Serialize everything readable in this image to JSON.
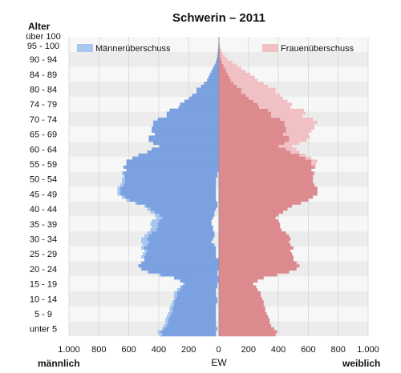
{
  "chart_data": {
    "type": "bar",
    "orientation": "horizontal-population-pyramid",
    "title": "Schwerin – 2011",
    "ylabel": "Alter",
    "xlabel": "EW",
    "left_label": "männlich",
    "right_label": "weiblich",
    "xlim": [
      -1000,
      1000
    ],
    "x_ticks": [
      "1.000",
      "800",
      "600",
      "400",
      "200",
      "0",
      "200",
      "400",
      "600",
      "800",
      "1.000"
    ],
    "age_labels": [
      "über 100",
      "95 - 100",
      "90 - 94",
      "84 - 89",
      "80 - 84",
      "74 - 79",
      "70 - 74",
      "65 - 69",
      "60 - 64",
      "55 - 59",
      "50 - 54",
      "45 - 49",
      "40 - 44",
      "35 - 39",
      "30 - 34",
      "25 - 29",
      "20 - 24",
      "15 - 19",
      "10 - 14",
      "5 - 9",
      "unter 5"
    ],
    "age_min": 0,
    "age_max": 100,
    "legend": [
      {
        "name": "Männerüberschuss",
        "color": "#a9c7ee"
      },
      {
        "name": "Frauenüberschuss",
        "color": "#f1c0c4"
      }
    ],
    "colors": {
      "male": "#7ba1e0",
      "female": "#dc8a8e",
      "male_excess": "#a9c7ee",
      "female_excess": "#f1c0c4"
    },
    "male_values": [
      400,
      410,
      380,
      370,
      360,
      360,
      350,
      340,
      330,
      330,
      320,
      310,
      300,
      300,
      300,
      280,
      260,
      240,
      260,
      300,
      400,
      480,
      520,
      540,
      520,
      500,
      520,
      510,
      500,
      520,
      510,
      520,
      520,
      500,
      480,
      460,
      450,
      460,
      450,
      420,
      430,
      460,
      480,
      500,
      560,
      620,
      650,
      680,
      680,
      680,
      660,
      650,
      650,
      640,
      650,
      620,
      640,
      620,
      620,
      580,
      540,
      480,
      450,
      400,
      440,
      470,
      470,
      430,
      450,
      450,
      440,
      440,
      410,
      350,
      350,
      330,
      270,
      260,
      230,
      200,
      180,
      150,
      150,
      120,
      100,
      80,
      70,
      60,
      50,
      40,
      30,
      20,
      15,
      10,
      8,
      6,
      4,
      3,
      2,
      1
    ],
    "female_values": [
      380,
      390,
      370,
      350,
      340,
      340,
      330,
      320,
      310,
      310,
      300,
      300,
      290,
      280,
      280,
      260,
      250,
      230,
      260,
      300,
      390,
      470,
      520,
      540,
      530,
      500,
      500,
      490,
      480,
      500,
      480,
      470,
      480,
      470,
      450,
      420,
      410,
      410,
      400,
      380,
      400,
      430,
      460,
      490,
      550,
      600,
      630,
      660,
      660,
      660,
      640,
      630,
      630,
      630,
      640,
      620,
      650,
      650,
      660,
      620,
      580,
      540,
      520,
      490,
      540,
      590,
      610,
      600,
      620,
      640,
      640,
      660,
      630,
      560,
      580,
      570,
      480,
      490,
      460,
      430,
      410,
      380,
      380,
      330,
      300,
      260,
      240,
      210,
      180,
      150,
      120,
      90,
      60,
      40,
      25,
      15,
      10,
      6,
      3,
      1
    ]
  }
}
